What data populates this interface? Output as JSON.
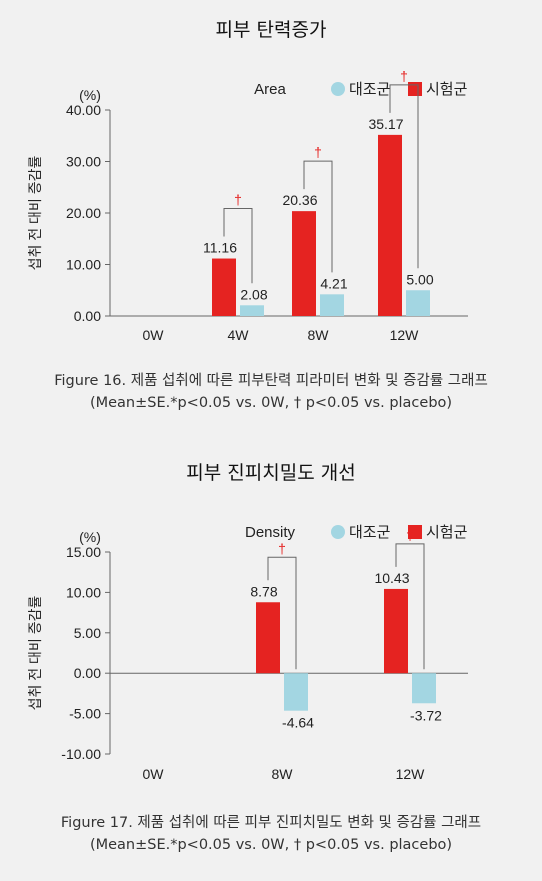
{
  "chart_data": [
    {
      "type": "bar",
      "title": "피부 탄력증가",
      "metric_label": "Area",
      "unit": "(%)",
      "ylabel": "섭취 전 대비 증감률",
      "categories": [
        "0W",
        "4W",
        "8W",
        "12W"
      ],
      "yticks": [
        "40.00",
        "30.00",
        "20.00",
        "10.00",
        "0.00"
      ],
      "ylim": [
        0,
        40
      ],
      "series": [
        {
          "name": "시험군",
          "color": "#e52321",
          "values": [
            null,
            11.16,
            20.36,
            35.17
          ],
          "labels": [
            "",
            "11.16",
            "20.36",
            "35.17"
          ]
        },
        {
          "name": "대조군",
          "color": "#a3d6e2",
          "values": [
            null,
            2.08,
            4.21,
            5.0
          ],
          "labels": [
            "",
            "2.08",
            "4.21",
            "5.00"
          ]
        }
      ],
      "significance_marker": "†",
      "significance_categories": [
        1,
        2,
        3
      ],
      "caption": [
        "Figure 16. 제품 섭취에 따른 피부탄력 피라미터 변화 및 증감률 그래프",
        "(Mean±SE.*p<0.05 vs. 0W, † p<0.05 vs. placebo)"
      ]
    },
    {
      "type": "bar",
      "title": "피부 진피치밀도 개선",
      "metric_label": "Density",
      "unit": "(%)",
      "ylabel": "섭취 전 대비 증감률",
      "categories": [
        "0W",
        "8W",
        "12W"
      ],
      "yticks": [
        "15.00",
        "10.00",
        "5.00",
        "0.00",
        "-5.00",
        "-10.00"
      ],
      "ylim": [
        -10,
        15
      ],
      "series": [
        {
          "name": "시험군",
          "color": "#e52321",
          "values": [
            null,
            8.78,
            10.43
          ],
          "labels": [
            "",
            "8.78",
            "10.43"
          ]
        },
        {
          "name": "대조군",
          "color": "#a3d6e2",
          "values": [
            null,
            -4.64,
            -3.72
          ],
          "labels": [
            "",
            "-4.64",
            "-3.72"
          ]
        }
      ],
      "significance_marker": "†",
      "significance_categories": [
        1,
        2
      ],
      "caption": [
        "Figure 17. 제품 섭취에 따른 피부 진피치밀도 변화 및 증감률 그래프",
        "(Mean±SE.*p<0.05 vs. 0W, † p<0.05 vs. placebo)"
      ]
    }
  ]
}
